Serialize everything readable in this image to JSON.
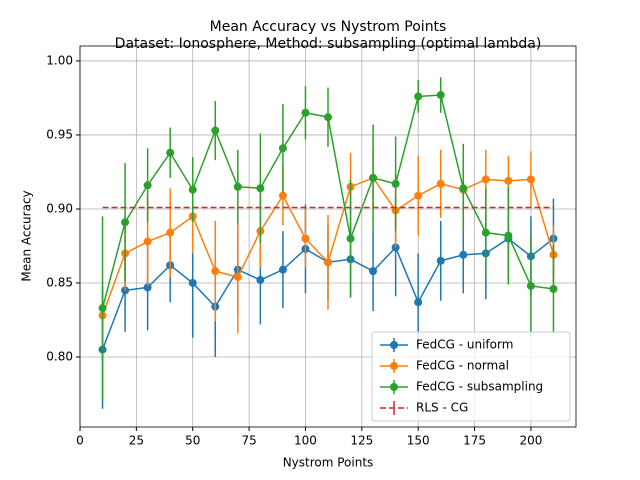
{
  "chart_data": {
    "type": "errorbar-line",
    "title": "Mean Accuracy vs Nystrom Points",
    "subtitle": "Dataset: Ionosphere, Method: subsampling (optimal lambda)",
    "x_label": "Nystrom Points",
    "y_label": "Mean Accuracy",
    "x": [
      10,
      20,
      30,
      40,
      50,
      60,
      70,
      80,
      90,
      100,
      110,
      120,
      130,
      140,
      150,
      160,
      170,
      180,
      190,
      200,
      210
    ],
    "series": [
      {
        "name": "FedCG - uniform",
        "color": "#1f77b4",
        "values": [
          0.805,
          0.845,
          0.847,
          0.862,
          0.85,
          0.834,
          0.859,
          0.852,
          0.859,
          0.873,
          0.864,
          0.866,
          0.858,
          0.874,
          0.837,
          0.865,
          0.869,
          0.87,
          0.88,
          0.868,
          0.88
        ],
        "errors": [
          0.04,
          0.028,
          0.029,
          0.025,
          0.037,
          0.034,
          0.03,
          0.03,
          0.026,
          0.03,
          0.025,
          0.025,
          0.027,
          0.033,
          0.033,
          0.027,
          0.026,
          0.031,
          0.028,
          0.027,
          0.027
        ]
      },
      {
        "name": "FedCG - normal",
        "color": "#ff7f0e",
        "values": [
          0.828,
          0.87,
          0.878,
          0.884,
          0.895,
          0.858,
          0.854,
          0.885,
          0.909,
          0.88,
          0.864,
          0.915,
          0.921,
          0.899,
          0.909,
          0.917,
          0.913,
          0.92,
          0.919,
          0.92,
          0.869
        ],
        "errors": [
          0.02,
          0.025,
          0.03,
          0.03,
          0.025,
          0.034,
          0.038,
          0.025,
          0.02,
          0.02,
          0.032,
          0.023,
          0.02,
          0.025,
          0.027,
          0.023,
          0.02,
          0.02,
          0.017,
          0.019,
          0.02
        ]
      },
      {
        "name": "FedCG - subsampling",
        "color": "#2ca02c",
        "values": [
          0.833,
          0.891,
          0.916,
          0.938,
          0.913,
          0.953,
          0.915,
          0.914,
          0.941,
          0.965,
          0.962,
          0.88,
          0.921,
          0.917,
          0.976,
          0.977,
          0.914,
          0.884,
          0.882,
          0.848,
          0.846
        ],
        "errors": [
          0.062,
          0.04,
          0.025,
          0.017,
          0.022,
          0.02,
          0.025,
          0.037,
          0.03,
          0.018,
          0.02,
          0.04,
          0.036,
          0.032,
          0.011,
          0.012,
          0.03,
          0.03,
          0.033,
          0.034,
          0.03
        ]
      }
    ],
    "reference": {
      "name": "RLS - CG",
      "color": "#d62728",
      "x": [
        10,
        210
      ],
      "values": [
        0.901,
        0.901
      ]
    },
    "xlim": [
      0,
      220
    ],
    "ylim": [
      0.7527,
      1.0101
    ],
    "xticks": [
      0,
      25,
      50,
      75,
      100,
      125,
      150,
      175,
      200
    ],
    "yticks": [
      {
        "value": 0.8,
        "label": "0.80"
      },
      0.85,
      {
        "value": 0.9,
        "label": "0.90"
      },
      0.95,
      {
        "value": 1.0,
        "label": "1.00"
      }
    ],
    "grid": true,
    "legend": "lower right"
  }
}
